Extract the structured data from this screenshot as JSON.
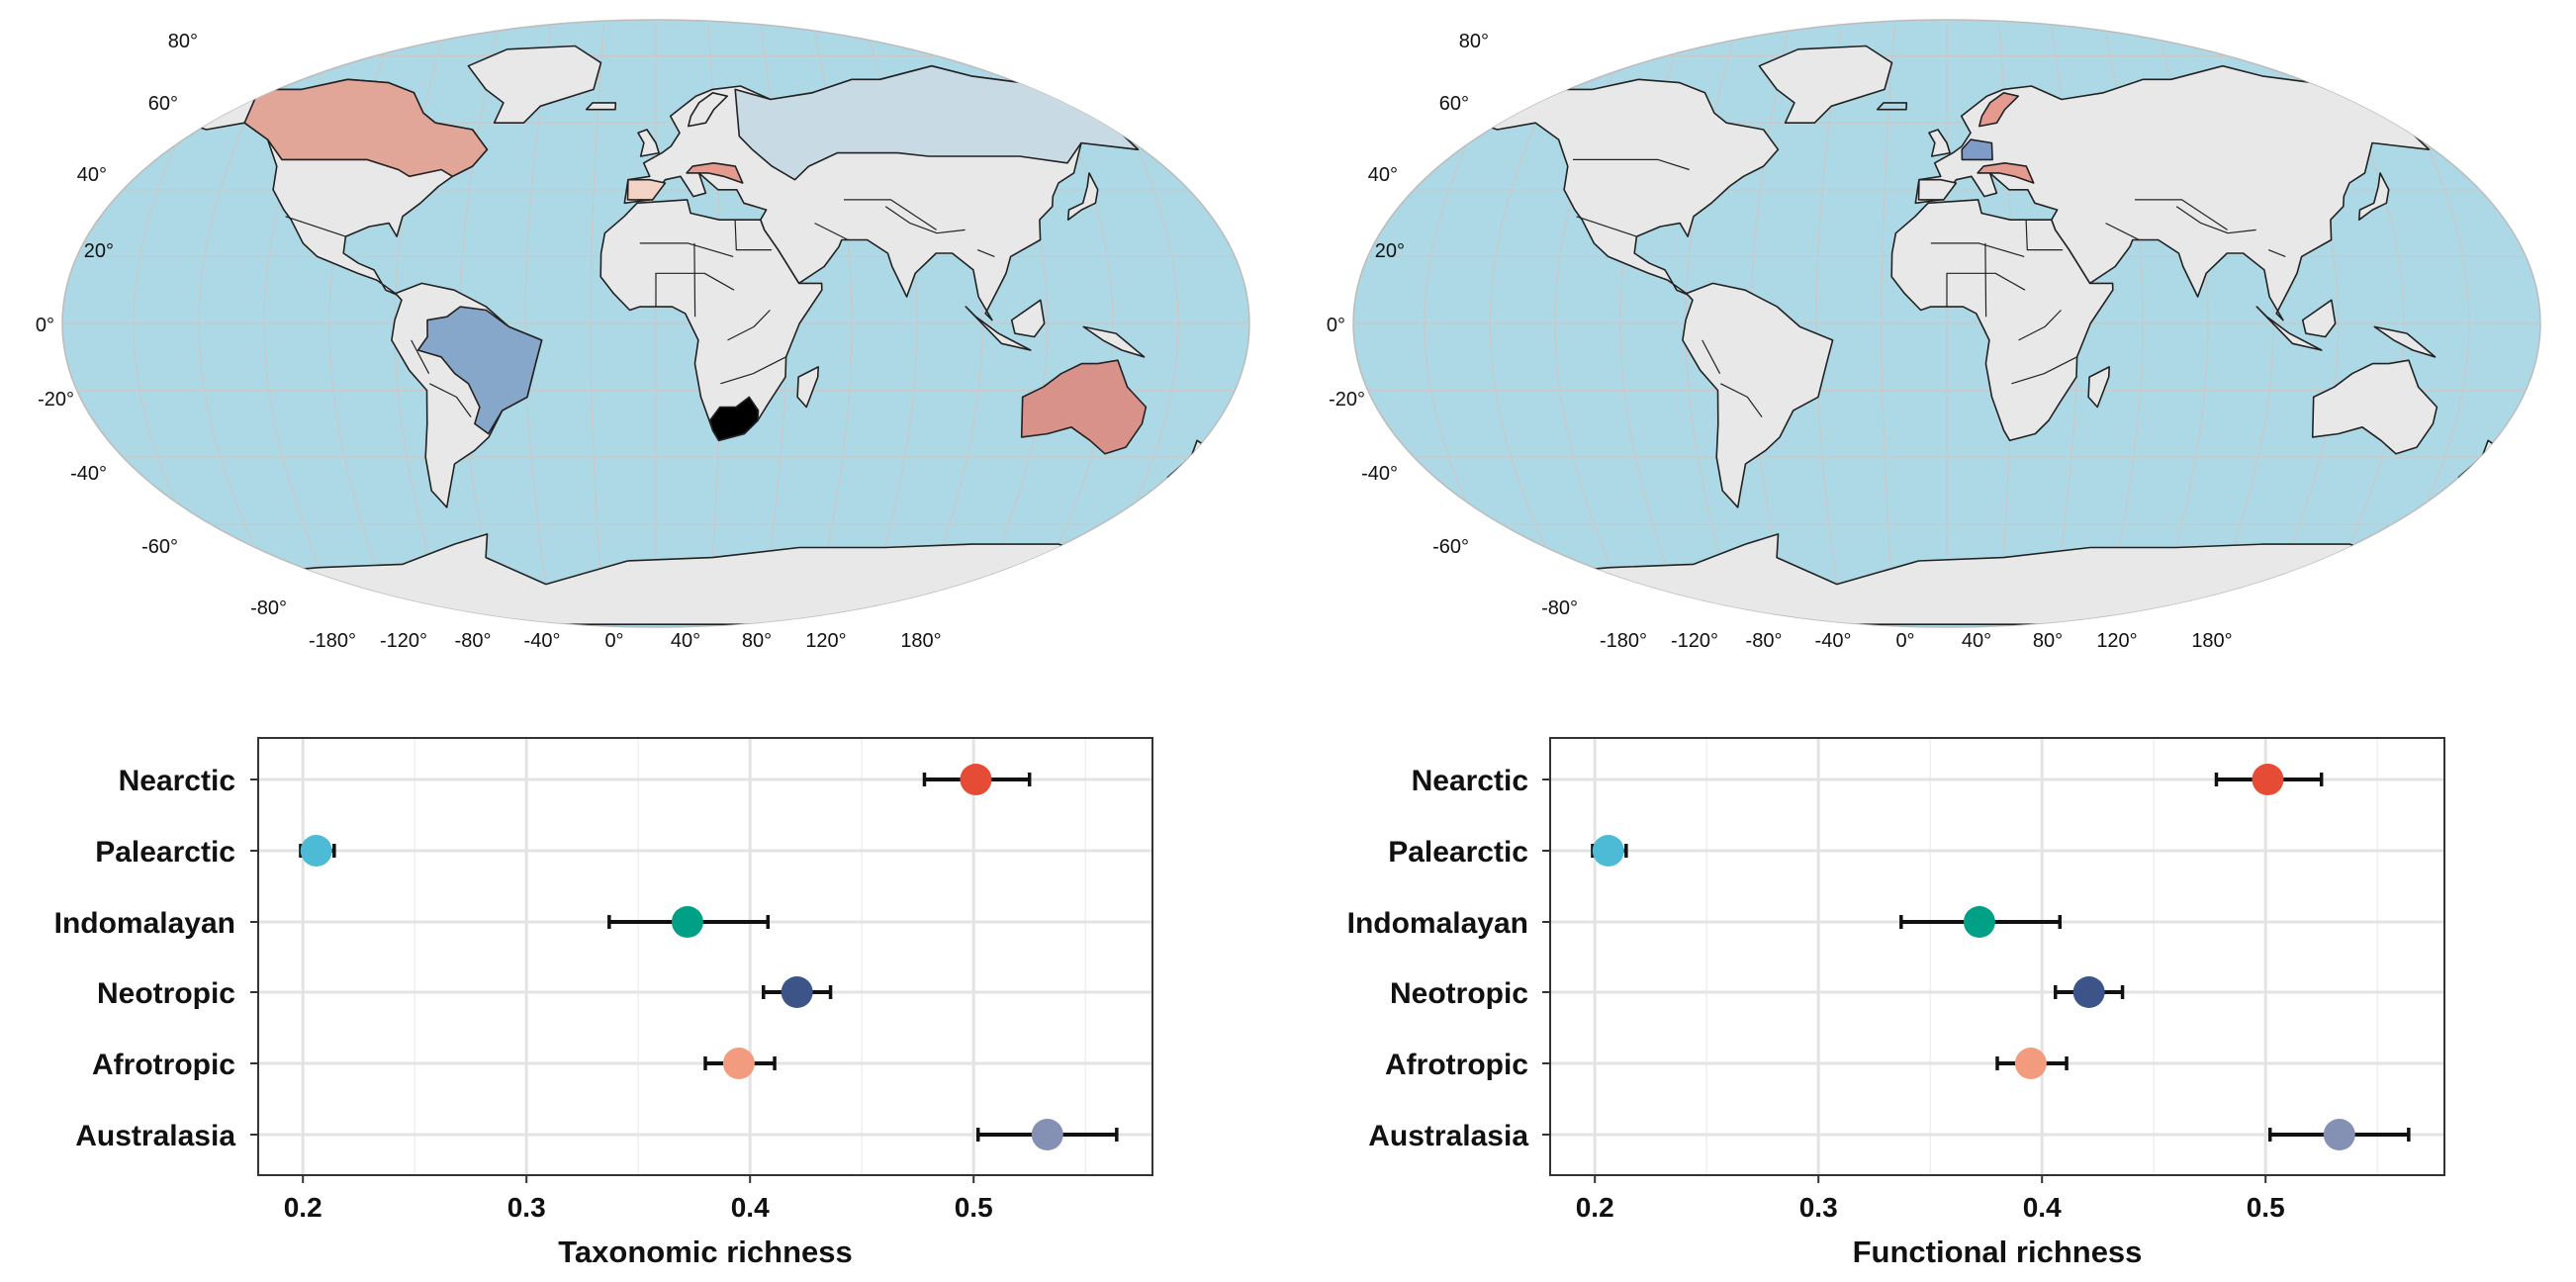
{
  "colors": {
    "ocean": "#add8e6",
    "land": "#e8e8e8",
    "land_border": "#222222",
    "graticule": "#c9c9c9",
    "canada": "#e2a698",
    "australia": "#d9928a",
    "brazil": "#86a6ca",
    "south_africa": "#f0b8a6",
    "russia": "#c8dbe5",
    "europe_red": "#e59a90",
    "europe_blue": "#7f9cc8",
    "panel_border": "#333333",
    "gridline": "#e3e3e3",
    "error_bar": "#111111"
  },
  "maps": [
    {
      "lat_ticks": [
        "80°",
        "60°",
        "40°",
        "20°",
        "0°",
        "-20°",
        "-40°",
        "-60°",
        "-80°"
      ],
      "lon_ticks": [
        "-180°",
        "-120°",
        "-80°",
        "-40°",
        "0°",
        "40°",
        "80°",
        "120°",
        "180°"
      ],
      "highlighted_regions": [
        "canada",
        "australia",
        "brazil",
        "south_africa",
        "russia",
        "europe_red"
      ]
    },
    {
      "lat_ticks": [
        "80°",
        "60°",
        "40°",
        "20°",
        "0°",
        "-20°",
        "-40°",
        "-60°",
        "-80°"
      ],
      "lon_ticks": [
        "-180°",
        "-120°",
        "-80°",
        "-40°",
        "0°",
        "40°",
        "80°",
        "120°",
        "180°"
      ],
      "highlighted_regions": [
        "europe_blue",
        "europe_red"
      ]
    }
  ],
  "chart_data": [
    {
      "type": "scatter",
      "xlabel": "Taxonomic richness",
      "ylabel": "",
      "xlim": [
        0.18,
        0.58
      ],
      "x_ticks": [
        "0.2",
        "0.3",
        "0.4",
        "0.5"
      ],
      "grid": true,
      "categories": [
        "Nearctic",
        "Palearctic",
        "Indomalayan",
        "Neotropic",
        "Afrotropic",
        "Australasia"
      ],
      "points": [
        {
          "category": "Nearctic",
          "x": 0.501,
          "low": 0.478,
          "high": 0.525,
          "color": "#e64b35"
        },
        {
          "category": "Palearctic",
          "x": 0.206,
          "low": 0.199,
          "high": 0.214,
          "color": "#4dbbd5"
        },
        {
          "category": "Indomalayan",
          "x": 0.372,
          "low": 0.337,
          "high": 0.408,
          "color": "#00a087"
        },
        {
          "category": "Neotropic",
          "x": 0.421,
          "low": 0.406,
          "high": 0.436,
          "color": "#3c5488"
        },
        {
          "category": "Afrotropic",
          "x": 0.395,
          "low": 0.38,
          "high": 0.411,
          "color": "#f39b7f"
        },
        {
          "category": "Australasia",
          "x": 0.533,
          "low": 0.502,
          "high": 0.564,
          "color": "#8491b4"
        }
      ]
    },
    {
      "type": "scatter",
      "xlabel": "Functional richness",
      "ylabel": "",
      "xlim": [
        0.18,
        0.58
      ],
      "x_ticks": [
        "0.2",
        "0.3",
        "0.4",
        "0.5"
      ],
      "grid": true,
      "categories": [
        "Nearctic",
        "Palearctic",
        "Indomalayan",
        "Neotropic",
        "Afrotropic",
        "Australasia"
      ],
      "points": [
        {
          "category": "Nearctic",
          "x": 0.501,
          "low": 0.478,
          "high": 0.525,
          "color": "#e64b35"
        },
        {
          "category": "Palearctic",
          "x": 0.206,
          "low": 0.199,
          "high": 0.214,
          "color": "#4dbbd5"
        },
        {
          "category": "Indomalayan",
          "x": 0.372,
          "low": 0.337,
          "high": 0.408,
          "color": "#00a087"
        },
        {
          "category": "Neotropic",
          "x": 0.421,
          "low": 0.406,
          "high": 0.436,
          "color": "#3c5488"
        },
        {
          "category": "Afrotropic",
          "x": 0.395,
          "low": 0.38,
          "high": 0.411,
          "color": "#f39b7f"
        },
        {
          "category": "Australasia",
          "x": 0.533,
          "low": 0.502,
          "high": 0.564,
          "color": "#8491b4"
        }
      ]
    }
  ]
}
